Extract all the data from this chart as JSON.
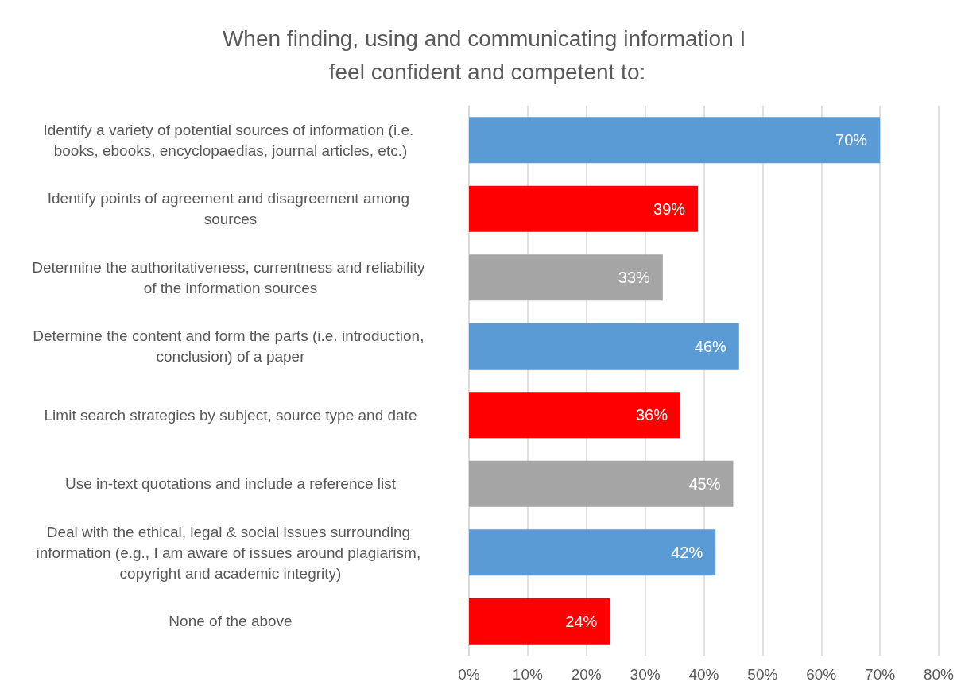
{
  "chart_data": {
    "type": "bar",
    "orientation": "horizontal",
    "title": "When finding, using and communicating information I feel confident and competent to:",
    "categories": [
      "Identify a variety of potential sources of information (i.e. books, ebooks, encyclopaedias, journal articles, etc.)",
      "Identify points of agreement and disagreement among sources",
      "Determine the authoritativeness, currentness and reliability of the information sources",
      "Determine the content and form the parts (i.e. introduction, conclusion) of a paper",
      "Limit search strategies by subject, source type and date",
      "Use in-text quotations and include a reference list",
      "Deal with the ethical, legal & social issues surrounding information (e.g., I am aware of issues around plagiarism, copyright and academic integrity)",
      "None of the above"
    ],
    "values": [
      70,
      39,
      33,
      46,
      36,
      45,
      42,
      24
    ],
    "value_labels": [
      "70%",
      "39%",
      "33%",
      "46%",
      "36%",
      "45%",
      "42%",
      "24%"
    ],
    "colors": [
      "#5b9bd5",
      "#ff0000",
      "#a5a5a5",
      "#5b9bd5",
      "#ff0000",
      "#a5a5a5",
      "#5b9bd5",
      "#ff0000"
    ],
    "xlim": [
      0,
      80
    ],
    "xticks": [
      {
        "value": 0,
        "label": "0%"
      },
      {
        "value": 10,
        "label": "10%"
      },
      {
        "value": 20,
        "label": "20%"
      },
      {
        "value": 30,
        "label": "30%"
      },
      {
        "value": 40,
        "label": "40%"
      },
      {
        "value": 50,
        "label": "50%"
      },
      {
        "value": 60,
        "label": "60%"
      },
      {
        "value": 70,
        "label": "70%"
      },
      {
        "value": 80,
        "label": "80%"
      }
    ],
    "grid": "x"
  }
}
